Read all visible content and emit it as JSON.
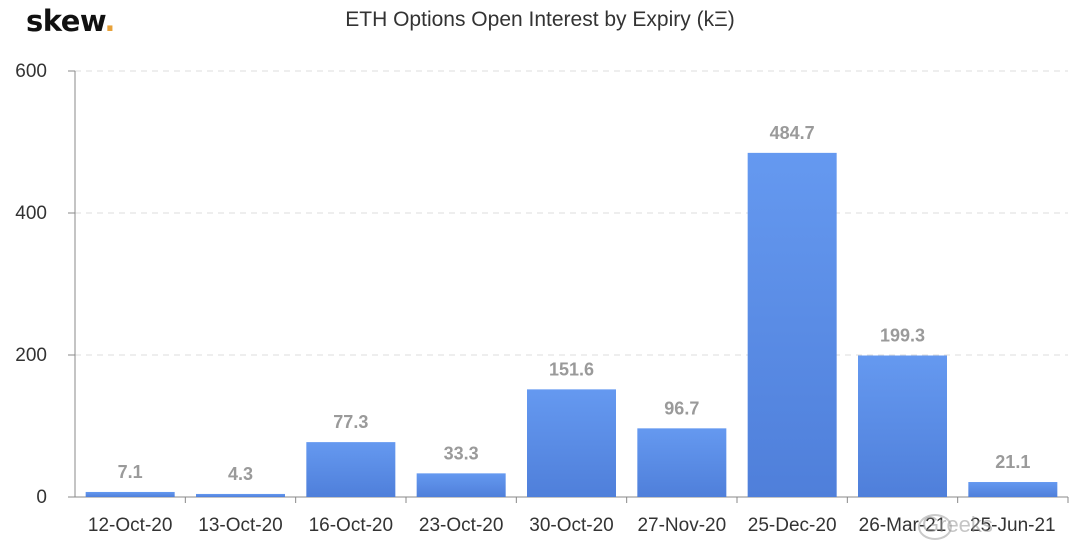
{
  "brand": {
    "name": "skew",
    "dot": "."
  },
  "watermark": {
    "text": "Greeks"
  },
  "colors": {
    "bar_top": "#6599f0",
    "bar_bottom": "#4f7fda",
    "axis": "#888888",
    "grid": "#dddddd",
    "label": "#9a9a9a",
    "tick": "#333333"
  },
  "chart_data": {
    "type": "bar",
    "title": "ETH Options Open Interest by Expiry (kΞ)",
    "xlabel": "",
    "ylabel": "",
    "categories": [
      "12-Oct-20",
      "13-Oct-20",
      "16-Oct-20",
      "23-Oct-20",
      "30-Oct-20",
      "27-Nov-20",
      "25-Dec-20",
      "26-Mar-21",
      "25-Jun-21"
    ],
    "values": [
      7.1,
      4.3,
      77.3,
      33.3,
      151.6,
      96.7,
      484.7,
      199.3,
      21.1
    ],
    "data_labels": [
      "7.1",
      "4.3",
      "77.3",
      "33.3",
      "151.6",
      "96.7",
      "484.7",
      "199.3",
      "21.1"
    ],
    "yticks": [
      0,
      200,
      400,
      600
    ],
    "ylim": [
      0,
      600
    ],
    "grid": true,
    "legend": "none"
  }
}
